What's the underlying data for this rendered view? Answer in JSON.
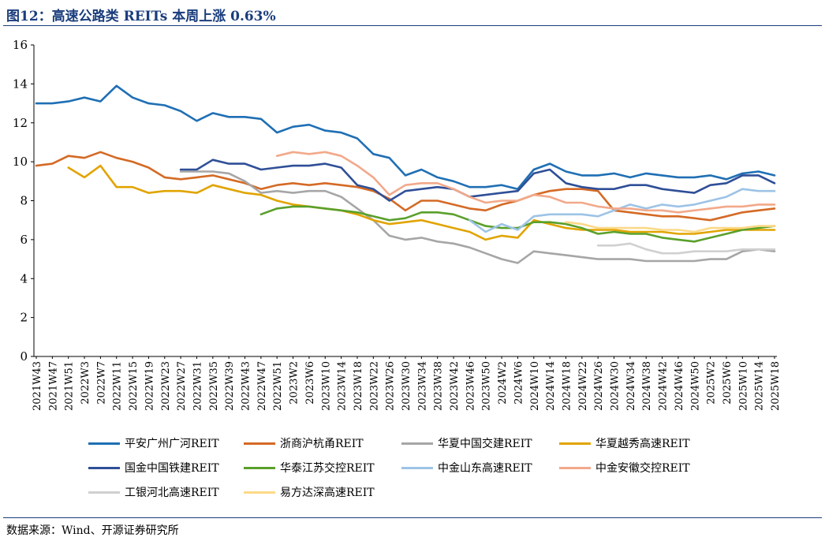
{
  "figure_title": "图12：高速公路类 REITs 本周上涨 0.63%",
  "source_note": "数据来源：Wind、开源证券研究所",
  "chart_data": {
    "type": "line",
    "title": "",
    "xlabel": "",
    "ylabel": "",
    "ylim": [
      0,
      16
    ],
    "yticks": [
      0,
      2,
      4,
      6,
      8,
      10,
      12,
      14,
      16
    ],
    "grid": false,
    "legend_position": "bottom",
    "x_tick_labels": [
      "2021W43",
      "2021W47",
      "2021W51",
      "2022W3",
      "2022W7",
      "2022W11",
      "2022W15",
      "2022W19",
      "2022W23",
      "2022W27",
      "2022W31",
      "2022W35",
      "2022W39",
      "2022W43",
      "2022W47",
      "2022W51",
      "2023W2",
      "2023W6",
      "2023W10",
      "2023W14",
      "2023W18",
      "2023W22",
      "2023W26",
      "2023W30",
      "2023W34",
      "2023W38",
      "2023W42",
      "2023W46",
      "2023W50",
      "2024W2",
      "2024W6",
      "2024W10",
      "2024W14",
      "2024W18",
      "2024W22",
      "2024W26",
      "2024W30",
      "2024W34",
      "2024W38",
      "2024W42",
      "2024W46",
      "2024W50",
      "2025W2",
      "2025W6",
      "2025W10",
      "2025W14",
      "2025W18"
    ],
    "series": [
      {
        "name": "平安广州广河REIT",
        "color": "#1f6fb4",
        "values": [
          13.0,
          13.0,
          13.1,
          13.3,
          13.1,
          13.9,
          13.3,
          13.0,
          12.9,
          12.6,
          12.1,
          12.5,
          12.3,
          12.3,
          12.2,
          11.5,
          11.8,
          11.9,
          11.6,
          11.5,
          11.2,
          10.4,
          10.2,
          9.3,
          9.6,
          9.2,
          9.0,
          8.7,
          8.7,
          8.8,
          8.6,
          9.6,
          9.9,
          9.5,
          9.3,
          9.3,
          9.4,
          9.2,
          9.4,
          9.3,
          9.2,
          9.2,
          9.3,
          9.1,
          9.4,
          9.5,
          9.3
        ]
      },
      {
        "name": "浙商沪杭甬REIT",
        "color": "#d46a25",
        "values": [
          9.8,
          9.9,
          10.3,
          10.2,
          10.5,
          10.2,
          10.0,
          9.7,
          9.2,
          9.1,
          9.2,
          9.3,
          9.1,
          8.9,
          8.6,
          8.8,
          8.9,
          8.8,
          8.9,
          8.8,
          8.7,
          8.5,
          8.1,
          7.5,
          8.0,
          8.0,
          7.8,
          7.6,
          7.5,
          7.8,
          8.0,
          8.3,
          8.5,
          8.6,
          8.6,
          8.5,
          7.5,
          7.4,
          7.3,
          7.2,
          7.2,
          7.1,
          7.0,
          7.2,
          7.4,
          7.5,
          7.6
        ]
      },
      {
        "name": "华夏中国交建REIT",
        "color": "#a6a6a6",
        "values": [
          null,
          null,
          null,
          null,
          null,
          null,
          null,
          null,
          null,
          9.5,
          9.5,
          9.5,
          9.4,
          9.0,
          8.4,
          8.5,
          8.4,
          8.5,
          8.5,
          8.2,
          7.6,
          7.0,
          6.2,
          6.0,
          6.1,
          5.9,
          5.8,
          5.6,
          5.3,
          5.0,
          4.8,
          5.4,
          5.3,
          5.2,
          5.1,
          5.0,
          5.0,
          5.0,
          4.9,
          4.9,
          4.9,
          4.9,
          5.0,
          5.0,
          5.4,
          5.5,
          5.4
        ]
      },
      {
        "name": "华夏越秀高速REIT",
        "color": "#e1a400",
        "values": [
          null,
          null,
          9.7,
          9.2,
          9.8,
          8.7,
          8.7,
          8.4,
          8.5,
          8.5,
          8.4,
          8.8,
          8.6,
          8.4,
          8.3,
          8.0,
          7.8,
          7.7,
          7.6,
          7.5,
          7.3,
          7.0,
          6.8,
          6.9,
          7.0,
          6.8,
          6.6,
          6.4,
          6.0,
          6.2,
          6.1,
          7.0,
          6.8,
          6.6,
          6.5,
          6.5,
          6.5,
          6.4,
          6.4,
          6.4,
          6.3,
          6.3,
          6.4,
          6.5,
          6.5,
          6.5,
          6.5
        ]
      },
      {
        "name": "国金中国铁建REIT",
        "color": "#2f4f97",
        "values": [
          null,
          null,
          null,
          null,
          null,
          null,
          null,
          null,
          null,
          9.6,
          9.6,
          10.1,
          9.9,
          9.9,
          9.6,
          9.7,
          9.8,
          9.8,
          9.9,
          9.7,
          8.8,
          8.6,
          8.0,
          8.5,
          8.6,
          8.7,
          8.6,
          8.2,
          8.3,
          8.4,
          8.5,
          9.4,
          9.6,
          8.9,
          8.7,
          8.6,
          8.6,
          8.8,
          8.8,
          8.6,
          8.5,
          8.4,
          8.8,
          8.9,
          9.3,
          9.3,
          8.9
        ]
      },
      {
        "name": "华泰江苏交控REIT",
        "color": "#5aa02c",
        "values": [
          null,
          null,
          null,
          null,
          null,
          null,
          null,
          null,
          null,
          null,
          null,
          null,
          null,
          null,
          7.3,
          7.6,
          7.7,
          7.7,
          7.6,
          7.5,
          7.4,
          7.2,
          7.0,
          7.1,
          7.4,
          7.4,
          7.3,
          7.0,
          6.7,
          6.6,
          6.6,
          6.9,
          6.9,
          6.8,
          6.6,
          6.3,
          6.4,
          6.3,
          6.3,
          6.1,
          6.0,
          5.9,
          6.1,
          6.3,
          6.5,
          6.6,
          6.7
        ]
      },
      {
        "name": "中金山东高速REIT",
        "color": "#9dc3e6",
        "values": [
          null,
          null,
          null,
          null,
          null,
          null,
          null,
          null,
          null,
          null,
          null,
          null,
          null,
          null,
          null,
          null,
          null,
          null,
          null,
          null,
          null,
          null,
          null,
          null,
          null,
          null,
          null,
          7.0,
          6.4,
          6.8,
          6.5,
          7.2,
          7.3,
          7.3,
          7.3,
          7.2,
          7.5,
          7.8,
          7.6,
          7.8,
          7.7,
          7.8,
          8.0,
          8.2,
          8.6,
          8.5,
          8.5
        ]
      },
      {
        "name": "中金安徽交控REIT",
        "color": "#f2a98a",
        "values": [
          null,
          null,
          null,
          null,
          null,
          null,
          null,
          null,
          null,
          null,
          null,
          null,
          null,
          null,
          null,
          10.3,
          10.5,
          10.4,
          10.5,
          10.3,
          9.8,
          9.2,
          8.3,
          8.8,
          8.9,
          8.9,
          8.6,
          8.2,
          7.9,
          8.0,
          8.0,
          8.3,
          8.2,
          7.9,
          7.9,
          7.7,
          7.6,
          7.6,
          7.5,
          7.5,
          7.4,
          7.5,
          7.6,
          7.7,
          7.7,
          7.8,
          7.8
        ]
      },
      {
        "name": "工银河北高速REIT",
        "color": "#d0d0d0",
        "values": [
          null,
          null,
          null,
          null,
          null,
          null,
          null,
          null,
          null,
          null,
          null,
          null,
          null,
          null,
          null,
          null,
          null,
          null,
          null,
          null,
          null,
          null,
          null,
          null,
          null,
          null,
          null,
          null,
          null,
          null,
          null,
          null,
          null,
          null,
          null,
          5.7,
          5.7,
          5.8,
          5.5,
          5.3,
          5.3,
          5.4,
          5.4,
          5.4,
          5.5,
          5.5,
          5.5
        ]
      },
      {
        "name": "易方达深高速REIT",
        "color": "#fbd987",
        "values": [
          null,
          null,
          null,
          null,
          null,
          null,
          null,
          null,
          null,
          null,
          null,
          null,
          null,
          null,
          null,
          null,
          null,
          null,
          null,
          null,
          null,
          null,
          null,
          null,
          null,
          null,
          null,
          null,
          null,
          null,
          null,
          null,
          null,
          6.9,
          6.8,
          6.6,
          6.6,
          6.6,
          6.6,
          6.5,
          6.5,
          6.4,
          6.6,
          6.6,
          6.6,
          6.7,
          6.7
        ]
      }
    ]
  }
}
